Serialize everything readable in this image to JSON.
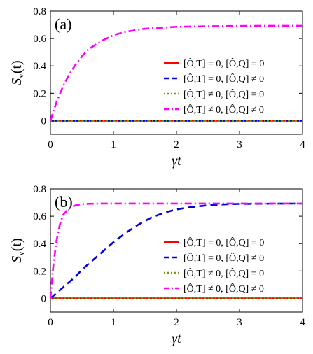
{
  "chart_data": [
    {
      "type": "line",
      "panel_label": "(a)",
      "xlabel": "γt",
      "ylabel": "S_v(t)",
      "ylabel_main": "S",
      "ylabel_sub": "v",
      "ylabel_tail": "(t)",
      "xlim": [
        0,
        4
      ],
      "ylim": [
        -0.1,
        0.8
      ],
      "xticks": [
        0,
        1,
        2,
        3,
        4
      ],
      "yticks": [
        0,
        0.2,
        0.4,
        0.6,
        0.8
      ],
      "xtick_labels": [
        "0",
        "1",
        "2",
        "3",
        "4"
      ],
      "ytick_labels": [
        "0",
        "0.2",
        "0.4",
        "0.6",
        "0.8"
      ],
      "grid": false,
      "legend_position": "center-right",
      "series": [
        {
          "name": "[Ô,T] = 0, [Ô,Q] = 0",
          "color": "#ff0000",
          "dash": "solid",
          "x": [
            0,
            4
          ],
          "y": [
            0,
            0
          ]
        },
        {
          "name": "[Ô,T] = 0, [Ô,Q] ≠ 0",
          "color": "#0000dd",
          "dash": "dash",
          "x": [
            0,
            4
          ],
          "y": [
            0,
            0
          ]
        },
        {
          "name": "[Ô,T] ≠ 0, [Ô,Q] = 0",
          "color": "#6f9e00",
          "dash": "dot",
          "x": [
            0,
            4
          ],
          "y": [
            0,
            0
          ]
        },
        {
          "name": "[Ô,T] ≠ 0, [Ô,Q] ≠ 0",
          "color": "#ff00ff",
          "dash": "dashdot",
          "x": [
            0,
            0.1,
            0.2,
            0.3,
            0.4,
            0.5,
            0.6,
            0.8,
            1.0,
            1.2,
            1.5,
            2.0,
            2.5,
            3.0,
            3.5,
            4.0
          ],
          "y": [
            0,
            0.14,
            0.25,
            0.34,
            0.41,
            0.47,
            0.52,
            0.58,
            0.625,
            0.65,
            0.672,
            0.686,
            0.69,
            0.692,
            0.693,
            0.693
          ]
        }
      ]
    },
    {
      "type": "line",
      "panel_label": "(b)",
      "xlabel": "γt",
      "ylabel": "S_v(t)",
      "ylabel_main": "S",
      "ylabel_sub": "v",
      "ylabel_tail": "(t)",
      "xlim": [
        0,
        4
      ],
      "ylim": [
        -0.1,
        0.8
      ],
      "xticks": [
        0,
        1,
        2,
        3,
        4
      ],
      "yticks": [
        0,
        0.2,
        0.4,
        0.6,
        0.8
      ],
      "xtick_labels": [
        "0",
        "1",
        "2",
        "3",
        "4"
      ],
      "ytick_labels": [
        "0",
        "0.2",
        "0.4",
        "0.6",
        "0.8"
      ],
      "grid": false,
      "legend_position": "center-right",
      "series": [
        {
          "name": "[Ô,T] = 0, [Ô,Q] = 0",
          "color": "#ff0000",
          "dash": "solid",
          "x": [
            0,
            4
          ],
          "y": [
            0,
            0
          ]
        },
        {
          "name": "[Ô,T] = 0, [Ô,Q] ≠ 0",
          "color": "#0000dd",
          "dash": "dash",
          "x": [
            0,
            0.1,
            0.2,
            0.3,
            0.4,
            0.5,
            0.6,
            0.8,
            1.0,
            1.2,
            1.4,
            1.6,
            1.8,
            2.0,
            2.2,
            2.5,
            2.8,
            3.0,
            3.5,
            4.0
          ],
          "y": [
            0,
            0.04,
            0.08,
            0.12,
            0.16,
            0.21,
            0.25,
            0.33,
            0.41,
            0.48,
            0.54,
            0.59,
            0.625,
            0.65,
            0.665,
            0.68,
            0.688,
            0.69,
            0.692,
            0.693
          ]
        },
        {
          "name": "[Ô,T] ≠ 0, [Ô,Q] = 0",
          "color": "#6f9e00",
          "dash": "dot",
          "x": [
            0,
            4
          ],
          "y": [
            0,
            0
          ]
        },
        {
          "name": "[Ô,T] ≠ 0, [Ô,Q] ≠ 0",
          "color": "#ff00ff",
          "dash": "dashdot",
          "x": [
            0,
            0.05,
            0.1,
            0.15,
            0.2,
            0.3,
            0.4,
            0.5,
            0.6,
            0.8,
            1.0,
            1.5,
            2.0,
            3.0,
            4.0
          ],
          "y": [
            0,
            0.26,
            0.43,
            0.54,
            0.61,
            0.66,
            0.68,
            0.688,
            0.691,
            0.693,
            0.693,
            0.693,
            0.693,
            0.693,
            0.693
          ]
        }
      ]
    }
  ]
}
